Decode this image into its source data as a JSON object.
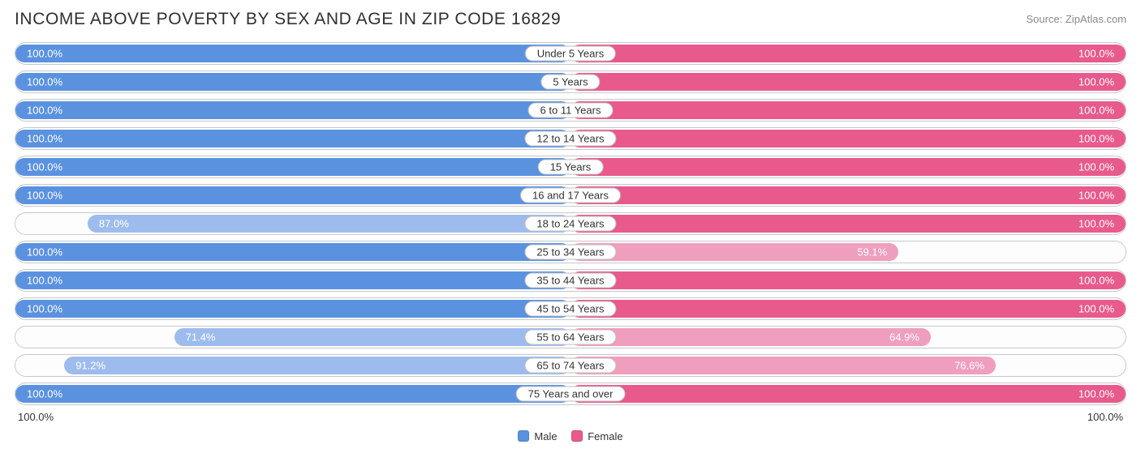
{
  "title": "INCOME ABOVE POVERTY BY SEX AND AGE IN ZIP CODE 16829",
  "source": "Source: ZipAtlas.com",
  "chart": {
    "type": "diverging-bar",
    "male_full_color": "#5b92e0",
    "male_partial_color": "#9dbced",
    "female_full_color": "#e85a8c",
    "female_partial_color": "#f09ebd",
    "row_border_color": "#c8c8c8",
    "background_color": "#ffffff",
    "label_fontsize": 13,
    "title_fontsize": 21,
    "categories": [
      {
        "label": "Under 5 Years",
        "male": 100.0,
        "female": 100.0
      },
      {
        "label": "5 Years",
        "male": 100.0,
        "female": 100.0
      },
      {
        "label": "6 to 11 Years",
        "male": 100.0,
        "female": 100.0
      },
      {
        "label": "12 to 14 Years",
        "male": 100.0,
        "female": 100.0
      },
      {
        "label": "15 Years",
        "male": 100.0,
        "female": 100.0
      },
      {
        "label": "16 and 17 Years",
        "male": 100.0,
        "female": 100.0
      },
      {
        "label": "18 to 24 Years",
        "male": 87.0,
        "female": 100.0
      },
      {
        "label": "25 to 34 Years",
        "male": 100.0,
        "female": 59.1
      },
      {
        "label": "35 to 44 Years",
        "male": 100.0,
        "female": 100.0
      },
      {
        "label": "45 to 54 Years",
        "male": 100.0,
        "female": 100.0
      },
      {
        "label": "55 to 64 Years",
        "male": 71.4,
        "female": 64.9
      },
      {
        "label": "65 to 74 Years",
        "male": 91.2,
        "female": 76.6
      },
      {
        "label": "75 Years and over",
        "male": 100.0,
        "female": 100.0
      }
    ],
    "axis": {
      "left": "100.0%",
      "right": "100.0%"
    },
    "legend": {
      "male": "Male",
      "female": "Female"
    }
  }
}
